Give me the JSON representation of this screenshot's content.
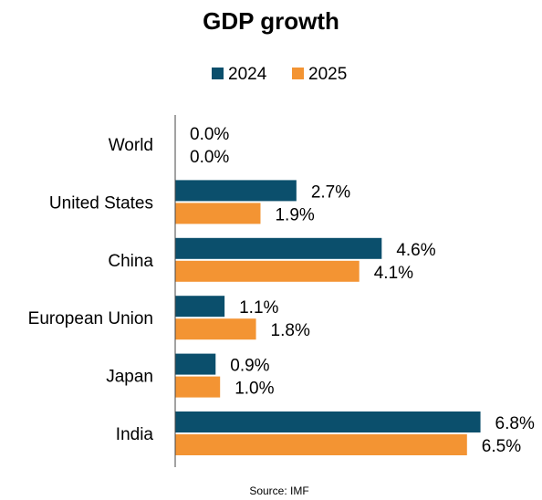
{
  "chart_data": {
    "type": "bar",
    "orientation": "horizontal",
    "title": "GDP growth",
    "categories": [
      "World",
      "United States",
      "China",
      "European Union",
      "Japan",
      "India"
    ],
    "series": [
      {
        "name": "2024",
        "color": "#0b4f6c",
        "values": [
          0.0,
          2.7,
          4.6,
          1.1,
          0.9,
          6.8
        ]
      },
      {
        "name": "2025",
        "color": "#f39433",
        "values": [
          0.0,
          1.9,
          4.1,
          1.8,
          1.0,
          6.5
        ]
      }
    ],
    "value_suffix": "%",
    "legend_position": "top-center",
    "grid": false,
    "source": "Source: IMF"
  }
}
